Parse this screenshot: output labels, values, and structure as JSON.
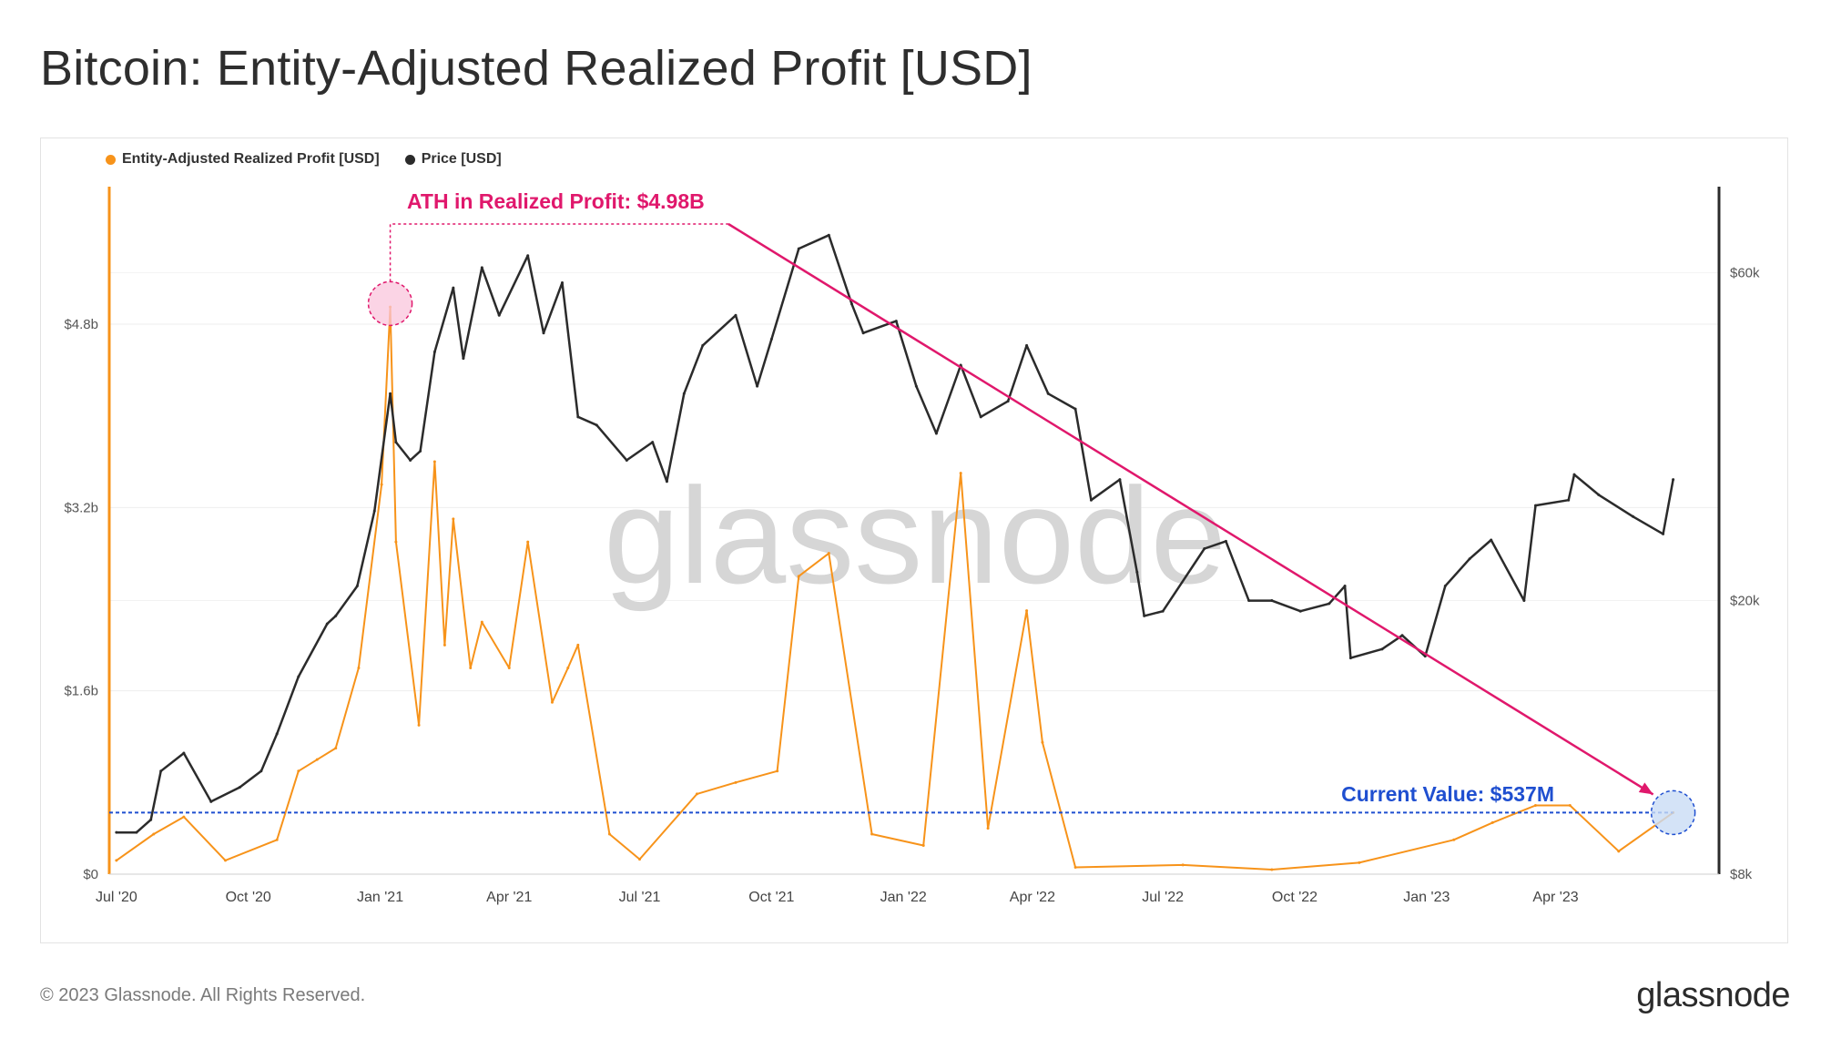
{
  "page": {
    "title": "Bitcoin: Entity-Adjusted Realized Profit [USD]",
    "copyright": "© 2023 Glassnode. All Rights Reserved.",
    "brand": "glassnode",
    "watermark": "glassnode"
  },
  "chart_data": {
    "type": "line",
    "title": "Bitcoin: Entity-Adjusted Realized Profit [USD]",
    "legend_placement": "top-left",
    "grid": true,
    "colors": {
      "profit": "#f7931a",
      "price": "#2b2b2b",
      "ath": "#e0186c",
      "current": "#1f4fd0"
    },
    "legend": [
      {
        "label": "Entity-Adjusted Realized Profit [USD]",
        "color": "#f7931a"
      },
      {
        "label": "Price [USD]",
        "color": "#2b2b2b"
      }
    ],
    "x_axis": {
      "range": [
        "2020-06-26",
        "2023-07-24"
      ],
      "ticks": [
        {
          "date": "2020-07-01",
          "label": "Jul '20"
        },
        {
          "date": "2020-10-01",
          "label": "Oct '20"
        },
        {
          "date": "2021-01-01",
          "label": "Jan '21"
        },
        {
          "date": "2021-04-01",
          "label": "Apr '21"
        },
        {
          "date": "2021-07-01",
          "label": "Jul '21"
        },
        {
          "date": "2021-10-01",
          "label": "Oct '21"
        },
        {
          "date": "2022-01-01",
          "label": "Jan '22"
        },
        {
          "date": "2022-04-01",
          "label": "Apr '22"
        },
        {
          "date": "2022-07-01",
          "label": "Jul '22"
        },
        {
          "date": "2022-10-01",
          "label": "Oct '22"
        },
        {
          "date": "2023-01-01",
          "label": "Jan '23"
        },
        {
          "date": "2023-04-01",
          "label": "Apr '23"
        }
      ]
    },
    "y_left": {
      "unit": "USD",
      "range": [
        0,
        6000000000
      ],
      "ticks": [
        {
          "value": 0,
          "label": "$0"
        },
        {
          "value": 1600000000,
          "label": "$1.6b"
        },
        {
          "value": 3200000000,
          "label": "$3.2b"
        },
        {
          "value": 4800000000,
          "label": "$4.8b"
        }
      ]
    },
    "y_right": {
      "unit": "USD",
      "scale": "log",
      "range": [
        8000,
        80000
      ],
      "ticks": [
        {
          "value": 8000,
          "label": "$8k"
        },
        {
          "value": 20000,
          "label": "$20k"
        },
        {
          "value": 60000,
          "label": "$60k"
        }
      ]
    },
    "series": [
      {
        "name": "Price [USD]",
        "axis": "right",
        "points": [
          [
            "2020-07-01",
            9200
          ],
          [
            "2020-07-15",
            9200
          ],
          [
            "2020-07-25",
            9600
          ],
          [
            "2020-08-01",
            11300
          ],
          [
            "2020-08-17",
            12000
          ],
          [
            "2020-09-05",
            10200
          ],
          [
            "2020-09-25",
            10700
          ],
          [
            "2020-10-10",
            11300
          ],
          [
            "2020-10-21",
            12800
          ],
          [
            "2020-11-05",
            15500
          ],
          [
            "2020-11-25",
            18500
          ],
          [
            "2020-12-01",
            19000
          ],
          [
            "2020-12-16",
            21000
          ],
          [
            "2020-12-28",
            27000
          ],
          [
            "2021-01-08",
            40000
          ],
          [
            "2021-01-12",
            34000
          ],
          [
            "2021-01-22",
            32000
          ],
          [
            "2021-01-29",
            33000
          ],
          [
            "2021-02-08",
            46000
          ],
          [
            "2021-02-21",
            57000
          ],
          [
            "2021-02-28",
            45000
          ],
          [
            "2021-03-13",
            61000
          ],
          [
            "2021-03-25",
            52000
          ],
          [
            "2021-04-14",
            63500
          ],
          [
            "2021-04-25",
            49000
          ],
          [
            "2021-05-08",
            58000
          ],
          [
            "2021-05-19",
            37000
          ],
          [
            "2021-06-01",
            36000
          ],
          [
            "2021-06-22",
            32000
          ],
          [
            "2021-07-10",
            34000
          ],
          [
            "2021-07-20",
            29800
          ],
          [
            "2021-08-01",
            40000
          ],
          [
            "2021-08-14",
            47000
          ],
          [
            "2021-09-06",
            52000
          ],
          [
            "2021-09-21",
            41000
          ],
          [
            "2021-10-01",
            48000
          ],
          [
            "2021-10-20",
            65000
          ],
          [
            "2021-11-10",
            68000
          ],
          [
            "2021-11-26",
            54000
          ],
          [
            "2021-12-04",
            49000
          ],
          [
            "2021-12-27",
            51000
          ],
          [
            "2022-01-10",
            41000
          ],
          [
            "2022-01-24",
            35000
          ],
          [
            "2022-02-10",
            44000
          ],
          [
            "2022-02-24",
            37000
          ],
          [
            "2022-03-15",
            39000
          ],
          [
            "2022-03-28",
            47000
          ],
          [
            "2022-04-12",
            40000
          ],
          [
            "2022-05-01",
            38000
          ],
          [
            "2022-05-12",
            28000
          ],
          [
            "2022-06-01",
            30000
          ],
          [
            "2022-06-13",
            22000
          ],
          [
            "2022-06-18",
            19000
          ],
          [
            "2022-07-01",
            19300
          ],
          [
            "2022-07-30",
            23800
          ],
          [
            "2022-08-14",
            24400
          ],
          [
            "2022-08-30",
            20000
          ],
          [
            "2022-09-15",
            20000
          ],
          [
            "2022-10-05",
            19300
          ],
          [
            "2022-10-25",
            19800
          ],
          [
            "2022-11-05",
            21000
          ],
          [
            "2022-11-09",
            16500
          ],
          [
            "2022-12-01",
            17000
          ],
          [
            "2022-12-15",
            17800
          ],
          [
            "2022-12-31",
            16600
          ],
          [
            "2023-01-14",
            21000
          ],
          [
            "2023-01-31",
            23000
          ],
          [
            "2023-02-15",
            24500
          ],
          [
            "2023-03-10",
            20000
          ],
          [
            "2023-03-18",
            27500
          ],
          [
            "2023-04-10",
            28000
          ],
          [
            "2023-04-14",
            30500
          ],
          [
            "2023-05-01",
            28500
          ],
          [
            "2023-05-25",
            26500
          ],
          [
            "2023-06-15",
            25000
          ],
          [
            "2023-06-22",
            30000
          ]
        ]
      },
      {
        "name": "Entity-Adjusted Realized Profit [USD]",
        "axis": "left",
        "points": [
          [
            "2020-07-01",
            120000000
          ],
          [
            "2020-07-27",
            350000000
          ],
          [
            "2020-08-17",
            500000000
          ],
          [
            "2020-09-15",
            120000000
          ],
          [
            "2020-10-21",
            300000000
          ],
          [
            "2020-11-05",
            900000000
          ],
          [
            "2020-11-18",
            1000000000
          ],
          [
            "2020-12-01",
            1100000000
          ],
          [
            "2020-12-17",
            1800000000
          ],
          [
            "2021-01-02",
            3400000000
          ],
          [
            "2021-01-08",
            4950000000
          ],
          [
            "2021-01-12",
            2900000000
          ],
          [
            "2021-01-28",
            1300000000
          ],
          [
            "2021-02-08",
            3600000000
          ],
          [
            "2021-02-15",
            2000000000
          ],
          [
            "2021-02-21",
            3100000000
          ],
          [
            "2021-03-05",
            1800000000
          ],
          [
            "2021-03-13",
            2200000000
          ],
          [
            "2021-04-01",
            1800000000
          ],
          [
            "2021-04-14",
            2900000000
          ],
          [
            "2021-05-01",
            1500000000
          ],
          [
            "2021-05-12",
            1800000000
          ],
          [
            "2021-05-19",
            2000000000
          ],
          [
            "2021-06-10",
            350000000
          ],
          [
            "2021-07-01",
            130000000
          ],
          [
            "2021-08-10",
            700000000
          ],
          [
            "2021-09-06",
            800000000
          ],
          [
            "2021-10-05",
            900000000
          ],
          [
            "2021-10-20",
            2600000000
          ],
          [
            "2021-11-10",
            2800000000
          ],
          [
            "2021-12-10",
            350000000
          ],
          [
            "2022-01-15",
            250000000
          ],
          [
            "2022-02-10",
            3500000000
          ],
          [
            "2022-03-01",
            400000000
          ],
          [
            "2022-03-28",
            2300000000
          ],
          [
            "2022-04-08",
            1150000000
          ],
          [
            "2022-05-01",
            60000000
          ],
          [
            "2022-07-15",
            80000000
          ],
          [
            "2022-09-15",
            40000000
          ],
          [
            "2022-11-15",
            100000000
          ],
          [
            "2023-01-20",
            300000000
          ],
          [
            "2023-02-16",
            450000000
          ],
          [
            "2023-03-18",
            600000000
          ],
          [
            "2023-04-11",
            600000000
          ],
          [
            "2023-05-15",
            200000000
          ],
          [
            "2023-06-22",
            537000000
          ]
        ]
      }
    ],
    "annotations": [
      {
        "label": "ATH in Realized Profit: $4.98B",
        "date": "2021-01-08",
        "value": 4980000000
      },
      {
        "label": "Current Value: $537M",
        "date": "2023-06-22",
        "value": 537000000
      }
    ]
  }
}
